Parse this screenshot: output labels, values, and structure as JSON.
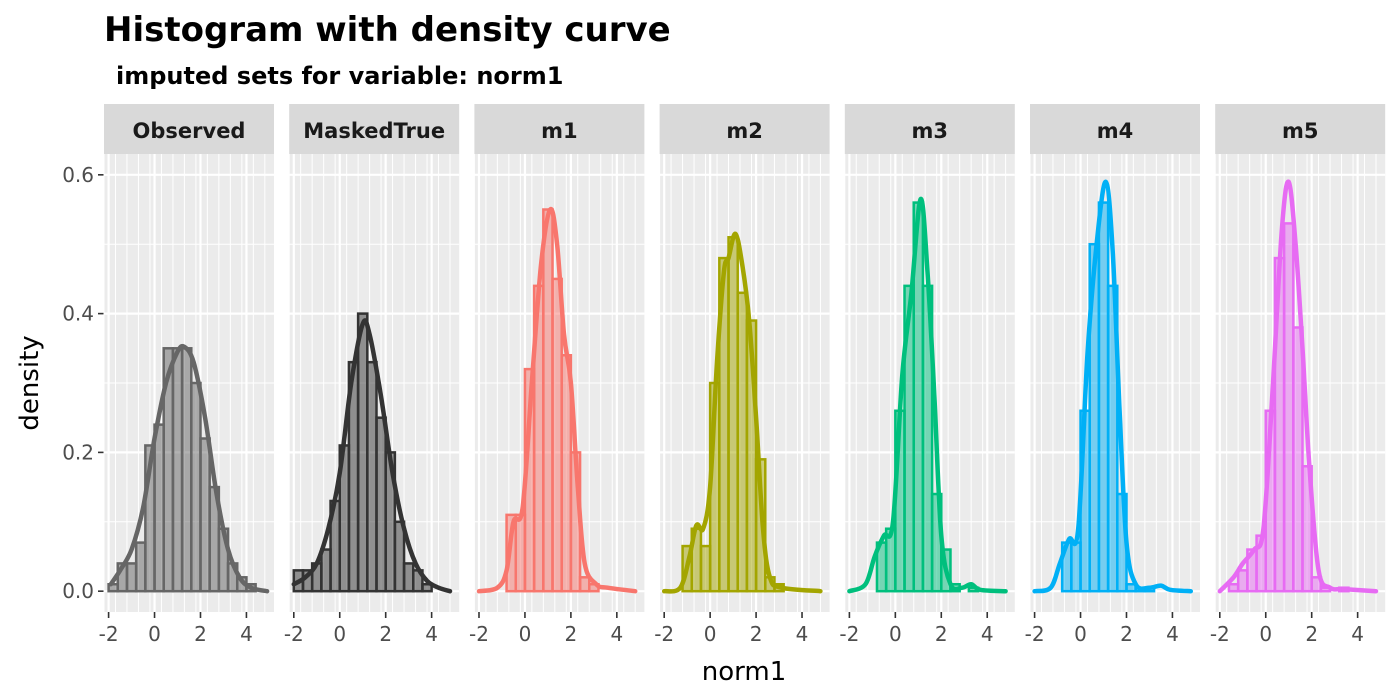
{
  "chart_data": {
    "type": "histogram",
    "title": "Histogram with density curve",
    "subtitle": "imputed sets for variable:  norm1",
    "xlabel": "norm1",
    "ylabel": "density",
    "xlim": [
      -2.2,
      5.2
    ],
    "ylim": [
      -0.03,
      0.63
    ],
    "x_ticks": [
      -2,
      0,
      2,
      4
    ],
    "x_tick_labels": [
      "-2",
      "0",
      "2",
      "4"
    ],
    "y_ticks": [
      0.0,
      0.2,
      0.4,
      0.6
    ],
    "y_tick_labels": [
      "0.0",
      "0.2",
      "0.4",
      "0.6"
    ],
    "grid": true,
    "bin_width": 0.4,
    "series": [
      {
        "name": "Observed",
        "color": "#666666",
        "bins": [
          {
            "x": -1.8,
            "y": 0.01
          },
          {
            "x": -1.4,
            "y": 0.04
          },
          {
            "x": -1.0,
            "y": 0.04
          },
          {
            "x": -0.6,
            "y": 0.07
          },
          {
            "x": -0.2,
            "y": 0.21
          },
          {
            "x": 0.2,
            "y": 0.24
          },
          {
            "x": 0.6,
            "y": 0.35
          },
          {
            "x": 1.0,
            "y": 0.35
          },
          {
            "x": 1.4,
            "y": 0.35
          },
          {
            "x": 1.8,
            "y": 0.3
          },
          {
            "x": 2.2,
            "y": 0.22
          },
          {
            "x": 2.6,
            "y": 0.15
          },
          {
            "x": 3.0,
            "y": 0.09
          },
          {
            "x": 3.4,
            "y": 0.04
          },
          {
            "x": 3.8,
            "y": 0.02
          },
          {
            "x": 4.2,
            "y": 0.01
          },
          {
            "x": 4.6,
            "y": 0.0
          }
        ],
        "density": [
          {
            "x": -1.9,
            "y": 0.01
          },
          {
            "x": -1.5,
            "y": 0.03
          },
          {
            "x": -1.0,
            "y": 0.06
          },
          {
            "x": -0.5,
            "y": 0.12
          },
          {
            "x": 0.0,
            "y": 0.22
          },
          {
            "x": 0.5,
            "y": 0.3
          },
          {
            "x": 1.0,
            "y": 0.345
          },
          {
            "x": 1.3,
            "y": 0.352
          },
          {
            "x": 1.7,
            "y": 0.33
          },
          {
            "x": 2.2,
            "y": 0.25
          },
          {
            "x": 2.7,
            "y": 0.14
          },
          {
            "x": 3.2,
            "y": 0.06
          },
          {
            "x": 3.7,
            "y": 0.02
          },
          {
            "x": 4.2,
            "y": 0.005
          },
          {
            "x": 4.9,
            "y": 0.0
          }
        ]
      },
      {
        "name": "MaskedTrue",
        "color": "#333333",
        "bins": [
          {
            "x": -1.8,
            "y": 0.03
          },
          {
            "x": -1.4,
            "y": 0.03
          },
          {
            "x": -1.0,
            "y": 0.04
          },
          {
            "x": -0.6,
            "y": 0.06
          },
          {
            "x": -0.2,
            "y": 0.13
          },
          {
            "x": 0.2,
            "y": 0.21
          },
          {
            "x": 0.6,
            "y": 0.33
          },
          {
            "x": 1.0,
            "y": 0.4
          },
          {
            "x": 1.4,
            "y": 0.33
          },
          {
            "x": 1.8,
            "y": 0.25
          },
          {
            "x": 2.2,
            "y": 0.2
          },
          {
            "x": 2.6,
            "y": 0.1
          },
          {
            "x": 3.0,
            "y": 0.04
          },
          {
            "x": 3.4,
            "y": 0.03
          },
          {
            "x": 3.8,
            "y": 0.01
          },
          {
            "x": 4.2,
            "y": 0.0
          }
        ],
        "density": [
          {
            "x": -2.0,
            "y": 0.01
          },
          {
            "x": -1.5,
            "y": 0.02
          },
          {
            "x": -1.0,
            "y": 0.04
          },
          {
            "x": -0.5,
            "y": 0.09
          },
          {
            "x": 0.0,
            "y": 0.17
          },
          {
            "x": 0.5,
            "y": 0.3
          },
          {
            "x": 1.0,
            "y": 0.385
          },
          {
            "x": 1.3,
            "y": 0.37
          },
          {
            "x": 1.8,
            "y": 0.28
          },
          {
            "x": 2.3,
            "y": 0.17
          },
          {
            "x": 2.8,
            "y": 0.09
          },
          {
            "x": 3.3,
            "y": 0.04
          },
          {
            "x": 3.8,
            "y": 0.015
          },
          {
            "x": 4.3,
            "y": 0.005
          },
          {
            "x": 4.8,
            "y": 0.0
          }
        ]
      },
      {
        "name": "m1",
        "color": "#F8766D",
        "bins": [
          {
            "x": -0.6,
            "y": 0.11
          },
          {
            "x": -0.2,
            "y": 0.11
          },
          {
            "x": 0.2,
            "y": 0.32
          },
          {
            "x": 0.6,
            "y": 0.44
          },
          {
            "x": 1.0,
            "y": 0.55
          },
          {
            "x": 1.4,
            "y": 0.45
          },
          {
            "x": 1.8,
            "y": 0.34
          },
          {
            "x": 2.2,
            "y": 0.2
          },
          {
            "x": 2.6,
            "y": 0.02
          },
          {
            "x": 3.0,
            "y": 0.01
          }
        ],
        "density": [
          {
            "x": -2.0,
            "y": 0.0
          },
          {
            "x": -1.2,
            "y": 0.005
          },
          {
            "x": -0.8,
            "y": 0.03
          },
          {
            "x": -0.5,
            "y": 0.1
          },
          {
            "x": -0.1,
            "y": 0.12
          },
          {
            "x": 0.3,
            "y": 0.3
          },
          {
            "x": 0.7,
            "y": 0.47
          },
          {
            "x": 1.1,
            "y": 0.55
          },
          {
            "x": 1.4,
            "y": 0.5
          },
          {
            "x": 1.7,
            "y": 0.37
          },
          {
            "x": 2.0,
            "y": 0.3
          },
          {
            "x": 2.3,
            "y": 0.15
          },
          {
            "x": 2.6,
            "y": 0.04
          },
          {
            "x": 3.1,
            "y": 0.01
          },
          {
            "x": 3.6,
            "y": 0.005
          },
          {
            "x": 4.8,
            "y": 0.0
          }
        ]
      },
      {
        "name": "m2",
        "color": "#A3A500",
        "bins": [
          {
            "x": -1.0,
            "y": 0.065
          },
          {
            "x": -0.6,
            "y": 0.09
          },
          {
            "x": -0.2,
            "y": 0.065
          },
          {
            "x": 0.2,
            "y": 0.3
          },
          {
            "x": 0.6,
            "y": 0.48
          },
          {
            "x": 1.0,
            "y": 0.51
          },
          {
            "x": 1.4,
            "y": 0.43
          },
          {
            "x": 1.8,
            "y": 0.39
          },
          {
            "x": 2.2,
            "y": 0.19
          },
          {
            "x": 2.6,
            "y": 0.02
          },
          {
            "x": 3.0,
            "y": 0.01
          }
        ],
        "density": [
          {
            "x": -2.0,
            "y": 0.0
          },
          {
            "x": -1.3,
            "y": 0.005
          },
          {
            "x": -0.9,
            "y": 0.05
          },
          {
            "x": -0.6,
            "y": 0.095
          },
          {
            "x": -0.3,
            "y": 0.09
          },
          {
            "x": 0.0,
            "y": 0.15
          },
          {
            "x": 0.3,
            "y": 0.33
          },
          {
            "x": 0.6,
            "y": 0.46
          },
          {
            "x": 0.8,
            "y": 0.48
          },
          {
            "x": 1.1,
            "y": 0.515
          },
          {
            "x": 1.4,
            "y": 0.47
          },
          {
            "x": 1.7,
            "y": 0.39
          },
          {
            "x": 2.0,
            "y": 0.25
          },
          {
            "x": 2.3,
            "y": 0.09
          },
          {
            "x": 2.6,
            "y": 0.02
          },
          {
            "x": 3.1,
            "y": 0.005
          },
          {
            "x": 4.8,
            "y": 0.0
          }
        ]
      },
      {
        "name": "m3",
        "color": "#00BF7D",
        "bins": [
          {
            "x": -0.6,
            "y": 0.07
          },
          {
            "x": -0.2,
            "y": 0.09
          },
          {
            "x": 0.2,
            "y": 0.26
          },
          {
            "x": 0.6,
            "y": 0.44
          },
          {
            "x": 1.0,
            "y": 0.56
          },
          {
            "x": 1.4,
            "y": 0.44
          },
          {
            "x": 1.8,
            "y": 0.14
          },
          {
            "x": 2.2,
            "y": 0.06
          },
          {
            "x": 2.6,
            "y": 0.01
          },
          {
            "x": 3.4,
            "y": 0.005
          }
        ],
        "density": [
          {
            "x": -2.0,
            "y": 0.0
          },
          {
            "x": -1.3,
            "y": 0.01
          },
          {
            "x": -0.9,
            "y": 0.05
          },
          {
            "x": -0.5,
            "y": 0.08
          },
          {
            "x": -0.1,
            "y": 0.1
          },
          {
            "x": 0.3,
            "y": 0.31
          },
          {
            "x": 0.7,
            "y": 0.43
          },
          {
            "x": 1.1,
            "y": 0.565
          },
          {
            "x": 1.4,
            "y": 0.46
          },
          {
            "x": 1.7,
            "y": 0.28
          },
          {
            "x": 2.0,
            "y": 0.08
          },
          {
            "x": 2.4,
            "y": 0.01
          },
          {
            "x": 2.9,
            "y": 0.005
          },
          {
            "x": 3.3,
            "y": 0.01
          },
          {
            "x": 3.7,
            "y": 0.002
          },
          {
            "x": 4.8,
            "y": 0.0
          }
        ]
      },
      {
        "name": "m4",
        "color": "#00B0F6",
        "bins": [
          {
            "x": -0.6,
            "y": 0.07
          },
          {
            "x": -0.2,
            "y": 0.07
          },
          {
            "x": 0.2,
            "y": 0.26
          },
          {
            "x": 0.6,
            "y": 0.5
          },
          {
            "x": 1.0,
            "y": 0.56
          },
          {
            "x": 1.4,
            "y": 0.44
          },
          {
            "x": 1.8,
            "y": 0.14
          },
          {
            "x": 2.2,
            "y": 0.01
          },
          {
            "x": 2.6,
            "y": 0.005
          },
          {
            "x": 3.0,
            "y": 0.005
          }
        ],
        "density": [
          {
            "x": -2.0,
            "y": 0.0
          },
          {
            "x": -1.3,
            "y": 0.005
          },
          {
            "x": -0.9,
            "y": 0.04
          },
          {
            "x": -0.5,
            "y": 0.075
          },
          {
            "x": -0.1,
            "y": 0.09
          },
          {
            "x": 0.3,
            "y": 0.34
          },
          {
            "x": 0.7,
            "y": 0.5
          },
          {
            "x": 1.1,
            "y": 0.59
          },
          {
            "x": 1.4,
            "y": 0.49
          },
          {
            "x": 1.7,
            "y": 0.26
          },
          {
            "x": 2.0,
            "y": 0.07
          },
          {
            "x": 2.4,
            "y": 0.01
          },
          {
            "x": 3.0,
            "y": 0.005
          },
          {
            "x": 3.5,
            "y": 0.008
          },
          {
            "x": 3.9,
            "y": 0.002
          },
          {
            "x": 4.8,
            "y": 0.0
          }
        ]
      },
      {
        "name": "m5",
        "color": "#E76BF3",
        "bins": [
          {
            "x": -1.4,
            "y": 0.01
          },
          {
            "x": -1.0,
            "y": 0.03
          },
          {
            "x": -0.6,
            "y": 0.06
          },
          {
            "x": -0.2,
            "y": 0.08
          },
          {
            "x": 0.2,
            "y": 0.26
          },
          {
            "x": 0.6,
            "y": 0.48
          },
          {
            "x": 1.0,
            "y": 0.53
          },
          {
            "x": 1.4,
            "y": 0.38
          },
          {
            "x": 1.8,
            "y": 0.18
          },
          {
            "x": 2.2,
            "y": 0.02
          },
          {
            "x": 2.6,
            "y": 0.005
          },
          {
            "x": 3.4,
            "y": 0.005
          }
        ],
        "density": [
          {
            "x": -2.0,
            "y": 0.0
          },
          {
            "x": -1.4,
            "y": 0.02
          },
          {
            "x": -1.0,
            "y": 0.04
          },
          {
            "x": -0.5,
            "y": 0.06
          },
          {
            "x": -0.1,
            "y": 0.09
          },
          {
            "x": 0.3,
            "y": 0.29
          },
          {
            "x": 0.7,
            "y": 0.52
          },
          {
            "x": 1.0,
            "y": 0.59
          },
          {
            "x": 1.3,
            "y": 0.5
          },
          {
            "x": 1.6,
            "y": 0.35
          },
          {
            "x": 1.9,
            "y": 0.18
          },
          {
            "x": 2.3,
            "y": 0.03
          },
          {
            "x": 2.8,
            "y": 0.005
          },
          {
            "x": 3.4,
            "y": 0.003
          },
          {
            "x": 4.8,
            "y": 0.0
          }
        ]
      }
    ]
  }
}
